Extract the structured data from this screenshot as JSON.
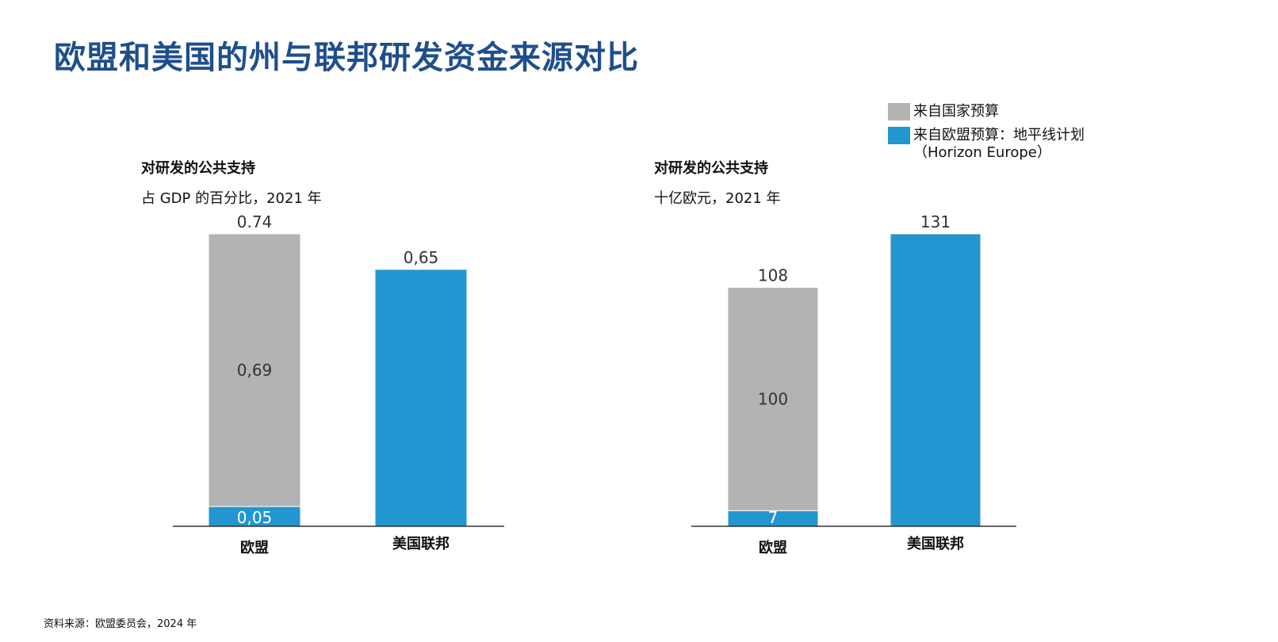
{
  "title": "欧盟和美国的州与联邦研发资金来源对比",
  "colors": {
    "national": "#b3b3b3",
    "eu": "#2196d0",
    "title": "#1f4e8c",
    "axis": "#333333"
  },
  "legend": [
    {
      "label": "来自国家预算",
      "color": "#b3b3b3"
    },
    {
      "label": "来自欧盟预算：地平线计划（Horizon Europe）",
      "color": "#2196d0"
    }
  ],
  "left_chart": {
    "line1": "对研发的公共支持",
    "line2": "占 GDP 的百分比，2021 年"
  },
  "right_chart": {
    "line1": "对研发的公共支持",
    "line2": "十亿欧元，2021 年"
  },
  "source": "资料来源：欧盟委员会，2024 年",
  "chart_data": [
    {
      "type": "bar",
      "stacked": true,
      "categories": [
        "欧盟",
        "美国联邦"
      ],
      "series": [
        {
          "name": "来自欧盟预算：地平线计划（Horizon Europe）",
          "values": [
            0.05,
            0.65
          ],
          "labels": [
            "0,05",
            "0,65"
          ]
        },
        {
          "name": "来自国家预算",
          "values": [
            0.69,
            0
          ],
          "labels": [
            "0,69",
            ""
          ]
        }
      ],
      "totals": [
        "0.74",
        ""
      ],
      "ylim": [
        0,
        0.74
      ]
    },
    {
      "type": "bar",
      "stacked": true,
      "categories": [
        "欧盟",
        "美国联邦"
      ],
      "series": [
        {
          "name": "来自欧盟预算：地平线计划（Horizon Europe）",
          "values": [
            7,
            131
          ],
          "labels": [
            "7",
            "131"
          ]
        },
        {
          "name": "来自国家预算",
          "values": [
            100,
            0
          ],
          "labels": [
            "100",
            ""
          ]
        }
      ],
      "totals": [
        "108",
        ""
      ],
      "ylim": [
        0,
        131
      ]
    }
  ]
}
